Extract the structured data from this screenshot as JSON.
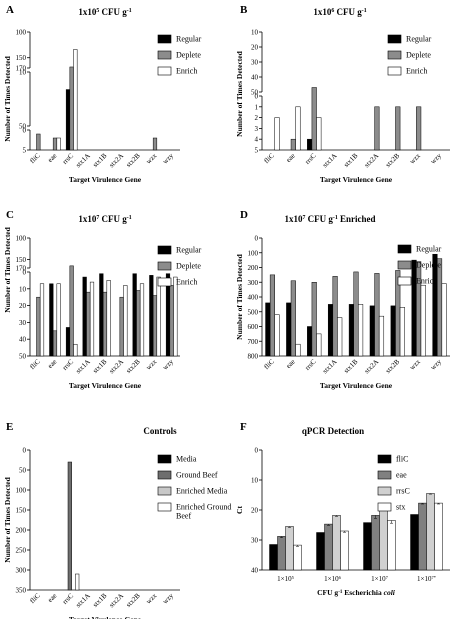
{
  "chart_data": [
    {
      "panel": "A",
      "type": "bar",
      "title": "1x10^5 CFU g^-1",
      "xlabel": "Target Virulence Gene",
      "ylabel": "Number of Times Detected",
      "categories": [
        "fliC",
        "eae",
        "rrsC",
        "stx1A",
        "stx1B",
        "stx2A",
        "stx2B",
        "wzx",
        "wzy"
      ],
      "series": [
        {
          "name": "Regular",
          "color": "#000000",
          "values": [
            0,
            0,
            23,
            0,
            0,
            0,
            0,
            0,
            0
          ]
        },
        {
          "name": "Deplete",
          "color": "#8c8c8c",
          "values": [
            1,
            2,
            168,
            0,
            0,
            0,
            0,
            2,
            0
          ]
        },
        {
          "name": "Enrich",
          "color": "#ffffff",
          "values": [
            0,
            2,
            134,
            0,
            0,
            0,
            0,
            0,
            0
          ]
        }
      ],
      "ylim": [
        0,
        170
      ],
      "y_breaks": [
        {
          "range": [
            0,
            5
          ],
          "ticks": [
            0,
            5
          ]
        },
        {
          "range": [
            10,
            50
          ],
          "ticks": [
            10,
            50
          ]
        },
        {
          "range": [
            100,
            170
          ],
          "ticks": [
            100,
            150,
            170
          ]
        }
      ],
      "legend": "top-right"
    },
    {
      "panel": "B",
      "type": "bar",
      "title": "1x10^6 CFU g^-1",
      "xlabel": "Target Virulence Gene",
      "ylabel": "Number of Times Detected",
      "categories": [
        "fliC",
        "eae",
        "rrsC",
        "stx1A",
        "stx1B",
        "stx2A",
        "stx2B",
        "wzx",
        "wzy"
      ],
      "series": [
        {
          "name": "Regular",
          "color": "#000000",
          "values": [
            0,
            0,
            4,
            0,
            0,
            0,
            0,
            0,
            0
          ]
        },
        {
          "name": "Deplete",
          "color": "#8c8c8c",
          "values": [
            0,
            4,
            47,
            0,
            0,
            1,
            1,
            1,
            0
          ]
        },
        {
          "name": "Enrich",
          "color": "#ffffff",
          "values": [
            2,
            1,
            2,
            0,
            0,
            0,
            0,
            0,
            0
          ]
        }
      ],
      "ylim": [
        0,
        50
      ],
      "y_breaks": [
        {
          "range": [
            0,
            5
          ],
          "ticks": [
            0,
            1,
            2,
            3,
            4,
            5
          ]
        },
        {
          "range": [
            10,
            50
          ],
          "ticks": [
            10,
            20,
            30,
            40,
            50
          ]
        }
      ],
      "legend": "top-right"
    },
    {
      "panel": "C",
      "type": "bar",
      "title": "1x10^7 CFU g^-1",
      "xlabel": "Target Virulence Gene",
      "ylabel": "Number of Times Detected",
      "categories": [
        "fliC",
        "eae",
        "rrsC",
        "stx1A",
        "stx1B",
        "stx2A",
        "stx2B",
        "wzx",
        "wzy"
      ],
      "series": [
        {
          "name": "Regular",
          "color": "#000000",
          "values": [
            0,
            7,
            33,
            3,
            1,
            0,
            1,
            2,
            1
          ]
        },
        {
          "name": "Deplete",
          "color": "#8c8c8c",
          "values": [
            15,
            35,
            165,
            12,
            12,
            15,
            11,
            14,
            8
          ]
        },
        {
          "name": "Enrich",
          "color": "#ffffff",
          "values": [
            7,
            7,
            43,
            6,
            5,
            8,
            7,
            3,
            3
          ]
        }
      ],
      "ylim": [
        0,
        170
      ],
      "y_breaks": [
        {
          "range": [
            0,
            50
          ],
          "ticks": [
            0,
            10,
            20,
            30,
            40,
            50
          ]
        },
        {
          "range": [
            100,
            170
          ],
          "ticks": [
            100,
            150,
            170
          ]
        }
      ],
      "legend": "top-right"
    },
    {
      "panel": "D",
      "type": "bar",
      "title": "1x10^7 CFU g^-1 Enriched",
      "xlabel": "Target Virulence Gene",
      "ylabel": "Number of Times Detected",
      "categories": [
        "fliC",
        "eae",
        "rrsC",
        "stx1A",
        "stx1B",
        "stx2A",
        "stx2B",
        "wzx",
        "wzy"
      ],
      "series": [
        {
          "name": "Regular",
          "color": "#000000",
          "values": [
            440,
            440,
            600,
            450,
            450,
            460,
            460,
            150,
            110
          ]
        },
        {
          "name": "Deplete",
          "color": "#8c8c8c",
          "values": [
            250,
            290,
            300,
            260,
            230,
            240,
            220,
            160,
            140
          ]
        },
        {
          "name": "Enrich",
          "color": "#ffffff",
          "values": [
            520,
            720,
            650,
            540,
            450,
            530,
            470,
            320,
            310
          ]
        }
      ],
      "ylim": [
        0,
        800
      ],
      "ticks": [
        0,
        100,
        200,
        300,
        400,
        500,
        600,
        700,
        800
      ],
      "legend": "top-right"
    },
    {
      "panel": "E",
      "type": "bar",
      "title": "Controls",
      "xlabel": "Target Virulence Gene",
      "ylabel": "Number of Times Detected",
      "categories": [
        "fliC",
        "eae",
        "rrsC",
        "stx1A",
        "stx1B",
        "stx2A",
        "stx2B",
        "wzx",
        "wzy"
      ],
      "series": [
        {
          "name": "Media",
          "color": "#000000",
          "values": [
            0,
            0,
            0,
            0,
            0,
            0,
            0,
            0,
            0
          ]
        },
        {
          "name": "Ground Beef",
          "color": "#6e6e6e",
          "values": [
            0,
            0,
            30,
            0,
            0,
            0,
            0,
            0,
            0
          ]
        },
        {
          "name": "Enriched Media",
          "color": "#c8c8c8",
          "values": [
            0,
            0,
            0,
            0,
            0,
            0,
            0,
            0,
            0
          ]
        },
        {
          "name": "Enriched Ground Beef",
          "color": "#ffffff",
          "values": [
            0,
            0,
            310,
            0,
            0,
            0,
            0,
            0,
            0
          ]
        }
      ],
      "ylim": [
        0,
        350
      ],
      "ticks": [
        0,
        50,
        100,
        150,
        200,
        250,
        300,
        350
      ],
      "legend": "top-right"
    },
    {
      "panel": "F",
      "type": "bar",
      "title": "qPCR Detection",
      "xlabel": "CFU g^-1 Escherichia coli",
      "ylabel": "Ct",
      "categories": [
        "1×10^5",
        "1×10^6",
        "1×10^7",
        "1×10^7*"
      ],
      "series": [
        {
          "name": "fliC",
          "color": "#000000",
          "values": [
            31.5,
            27.5,
            24.2,
            21.5
          ],
          "err": [
            0.6,
            0.5,
            1.0,
            0.4
          ]
        },
        {
          "name": "eae",
          "color": "#808080",
          "values": [
            28.8,
            24.7,
            21.8,
            17.7
          ],
          "err": [
            0.4,
            0.4,
            1.0,
            0.3
          ]
        },
        {
          "name": "rrsC",
          "color": "#d0d0d0",
          "values": [
            25.5,
            21.8,
            19.3,
            14.5
          ],
          "err": [
            0.3,
            0.3,
            0.8,
            0.2
          ]
        },
        {
          "name": "stx",
          "color": "#ffffff",
          "values": [
            31.7,
            27.0,
            23.5,
            17.7
          ],
          "err": [
            0.4,
            0.4,
            0.9,
            0.3
          ]
        }
      ],
      "ylim": [
        0,
        40
      ],
      "ticks": [
        0,
        10,
        20,
        30,
        40
      ],
      "legend": "top-right"
    }
  ]
}
